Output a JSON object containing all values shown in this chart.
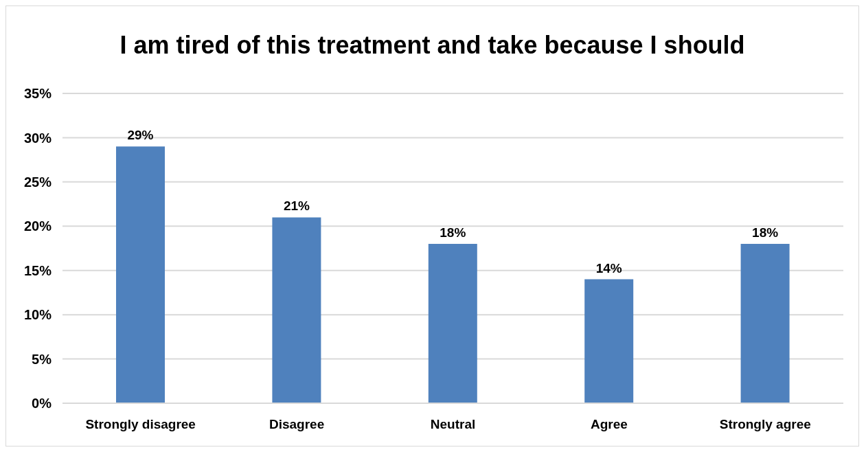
{
  "chart_data": {
    "type": "bar",
    "title": "I am tired of this treatment and take because I should",
    "categories": [
      "Strongly disagree",
      "Disagree",
      "Neutral",
      "Agree",
      "Strongly agree"
    ],
    "values": [
      29,
      21,
      18,
      14,
      18
    ],
    "value_labels": [
      "29%",
      "21%",
      "18%",
      "14%",
      "18%"
    ],
    "color": "#4f81bd",
    "ylim": [
      0,
      35
    ],
    "yticks": [
      {
        "value": 0,
        "label": "0%"
      },
      {
        "value": 5,
        "label": "5%"
      },
      {
        "value": 10,
        "label": "10%"
      },
      {
        "value": 15,
        "label": "15%"
      },
      {
        "value": 20,
        "label": "20%"
      },
      {
        "value": 25,
        "label": "25%"
      },
      {
        "value": 30,
        "label": "30%"
      },
      {
        "value": 35,
        "label": "35%"
      }
    ],
    "grid": "y"
  }
}
